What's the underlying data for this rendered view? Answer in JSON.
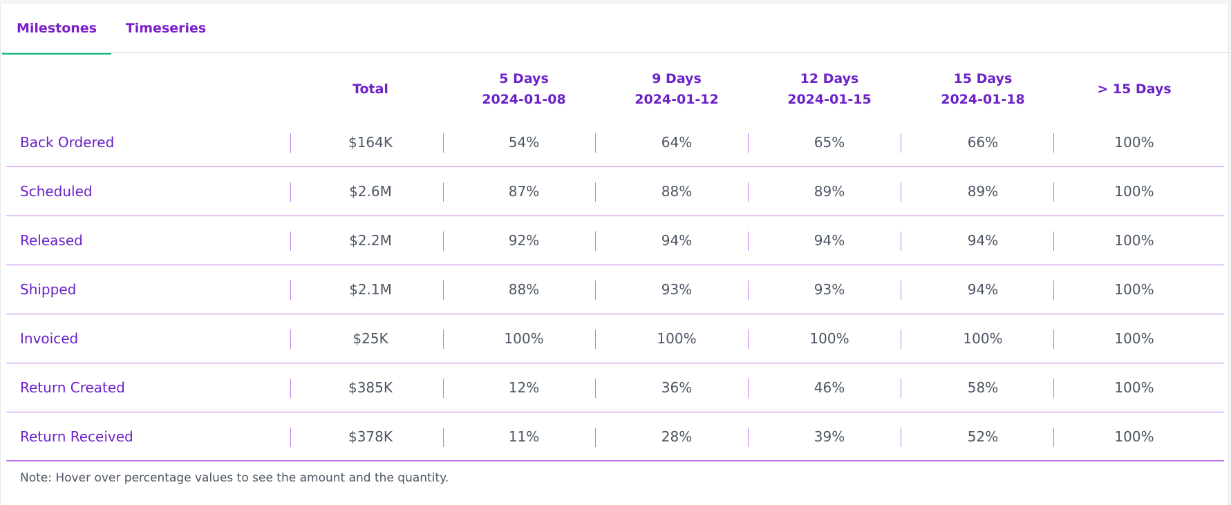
{
  "tabs": [
    {
      "label": "Milestones",
      "active": true
    },
    {
      "label": "Timeseries",
      "active": false
    }
  ],
  "table": {
    "headers": [
      {
        "line1": "Total",
        "line2": ""
      },
      {
        "line1": "5 Days",
        "line2": "2024-01-08"
      },
      {
        "line1": "9 Days",
        "line2": "2024-01-12"
      },
      {
        "line1": "12 Days",
        "line2": "2024-01-15"
      },
      {
        "line1": "15 Days",
        "line2": "2024-01-18"
      },
      {
        "line1": "> 15 Days",
        "line2": ""
      }
    ],
    "rows": [
      {
        "label": "Back Ordered",
        "cells": [
          "$164K",
          "54%",
          "64%",
          "65%",
          "66%",
          "100%"
        ]
      },
      {
        "label": "Scheduled",
        "cells": [
          "$2.6M",
          "87%",
          "88%",
          "89%",
          "89%",
          "100%"
        ]
      },
      {
        "label": "Released",
        "cells": [
          "$2.2M",
          "92%",
          "94%",
          "94%",
          "94%",
          "100%"
        ]
      },
      {
        "label": "Shipped",
        "cells": [
          "$2.1M",
          "88%",
          "93%",
          "93%",
          "94%",
          "100%"
        ]
      },
      {
        "label": "Invoiced",
        "cells": [
          "$25K",
          "100%",
          "100%",
          "100%",
          "100%",
          "100%"
        ]
      },
      {
        "label": "Return Created",
        "cells": [
          "$385K",
          "12%",
          "36%",
          "46%",
          "58%",
          "100%"
        ]
      },
      {
        "label": "Return Received",
        "cells": [
          "$378K",
          "11%",
          "28%",
          "39%",
          "52%",
          "100%"
        ]
      }
    ]
  },
  "note": "Note: Hover over percentage values to see the amount and the quantity.",
  "colors": {
    "accent": "#7a1fc9",
    "row_label": "#6b21c8",
    "divider": "#c079ea",
    "tab_underline": "#10b981",
    "cell_text": "#4b5563"
  }
}
